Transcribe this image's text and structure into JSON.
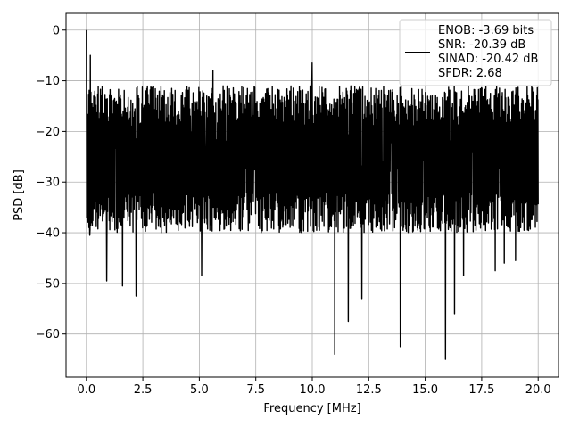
{
  "chart_data": {
    "type": "line",
    "xlabel": "Frequency [MHz]",
    "ylabel": "PSD [dB]",
    "xlim": [
      -0.9,
      20.9
    ],
    "ylim": [
      -68.5,
      3.3
    ],
    "xticks": [
      0.0,
      2.5,
      5.0,
      7.5,
      10.0,
      12.5,
      15.0,
      17.5,
      20.0
    ],
    "xtick_labels": [
      "0.0",
      "2.5",
      "5.0",
      "7.5",
      "10.0",
      "12.5",
      "15.0",
      "17.5",
      "20.0"
    ],
    "yticks": [
      0,
      -10,
      -20,
      -30,
      -40,
      -50,
      -60
    ],
    "ytick_labels": [
      "0",
      "−10",
      "−20",
      "−30",
      "−40",
      "−50",
      "−60"
    ],
    "grid": true,
    "legend_position": "top-right",
    "series": [
      {
        "color": "#000000",
        "x_range": [
          0.0,
          20.0
        ],
        "points_count": 1600,
        "upper_envelope_db": -10,
        "lower_envelope_db": -35,
        "dc_peak_db": 0,
        "spurs": [
          {
            "x": 0.0,
            "y": 0.0
          },
          {
            "x": 0.18,
            "y": -5.0
          },
          {
            "x": 5.6,
            "y": -8.0
          },
          {
            "x": 10.0,
            "y": -6.5
          }
        ],
        "dips": [
          {
            "x": 0.15,
            "y": -40.5
          },
          {
            "x": 0.9,
            "y": -49.5
          },
          {
            "x": 1.6,
            "y": -50.5
          },
          {
            "x": 2.2,
            "y": -52.5
          },
          {
            "x": 5.1,
            "y": -48.5
          },
          {
            "x": 11.0,
            "y": -64.0
          },
          {
            "x": 11.6,
            "y": -57.5
          },
          {
            "x": 12.2,
            "y": -53.0
          },
          {
            "x": 13.9,
            "y": -62.5
          },
          {
            "x": 15.9,
            "y": -65.0
          },
          {
            "x": 16.3,
            "y": -56.0
          },
          {
            "x": 16.7,
            "y": -48.5
          },
          {
            "x": 18.1,
            "y": -47.5
          },
          {
            "x": 18.5,
            "y": -46.0
          },
          {
            "x": 19.0,
            "y": -45.5
          }
        ]
      }
    ],
    "legend": {
      "entries": [
        "ENOB: -3.69 bits",
        "SNR: -20.39 dB",
        "SINAD: -20.42 dB",
        "SFDR: 2.68"
      ]
    }
  }
}
